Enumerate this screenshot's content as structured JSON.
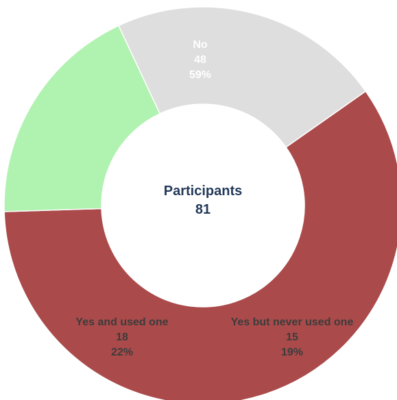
{
  "chart_data": {
    "type": "pie",
    "variant": "donut",
    "center": {
      "title": "Participants",
      "total": "81"
    },
    "slices": [
      {
        "label": "No",
        "value": 48,
        "percent": "59%",
        "color": "#ab4a4a",
        "text_color": "#ffffff"
      },
      {
        "label": "Yes but never used one",
        "value": 15,
        "percent": "19%",
        "color": "#b0f2b0",
        "text_color": "#3c3c3c"
      },
      {
        "label": "Yes and used one",
        "value": 18,
        "percent": "22%",
        "color": "#dedede",
        "text_color": "#3c3c3c"
      }
    ],
    "center_text_color": "#243a5a",
    "legend": "none"
  }
}
